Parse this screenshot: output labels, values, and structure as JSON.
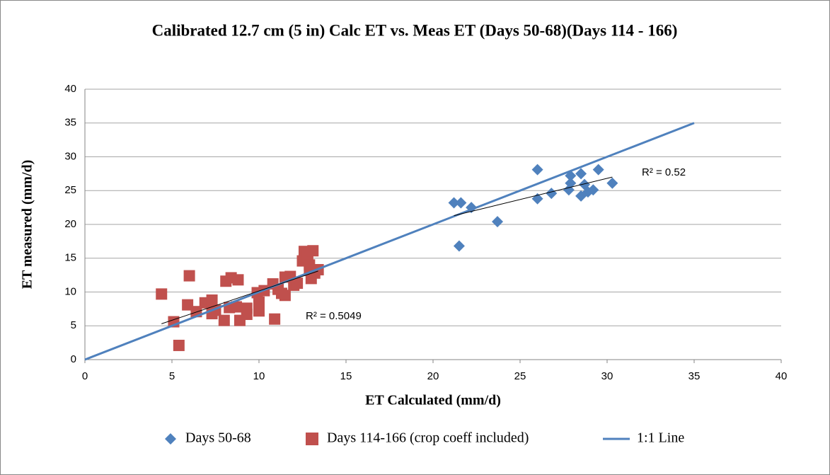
{
  "chart_data": {
    "type": "scatter",
    "title": "Calibrated 12.7 cm (5 in) Calc ET vs. Meas ET (Days 50-68)(Days 114 - 166)",
    "xlabel": "ET Calculated (mm/d)",
    "ylabel": "ET measured (mm/d)",
    "xlim": [
      0,
      40
    ],
    "xticks": [
      0,
      5,
      10,
      15,
      20,
      25,
      30,
      35,
      40
    ],
    "ylim": [
      0,
      40
    ],
    "yticks": [
      0,
      5,
      10,
      15,
      20,
      25,
      30,
      35,
      40
    ],
    "grid": true,
    "legend": "bottom",
    "series": [
      {
        "name": "Days 50-68",
        "color": "#4f81bd",
        "marker": "diamond",
        "x": [
          26,
          26,
          26.8,
          27.8,
          27.9,
          27.9,
          28.5,
          28.5,
          28.7,
          28.9,
          29.2,
          29.5,
          30.3,
          21.2,
          21.6,
          22.2,
          21.5,
          23.7
        ],
        "values": [
          28.1,
          23.8,
          24.6,
          25.1,
          26.1,
          27.2,
          27.5,
          24.2,
          25.9,
          24.8,
          25.1,
          28.1,
          26.1,
          23.2,
          23.2,
          22.5,
          16.8,
          20.4
        ]
      },
      {
        "name": "Days 114-166 (crop coeff included)",
        "color": "#c0504d",
        "marker": "square",
        "x": [
          4.4,
          5.1,
          5.4,
          6,
          5.9,
          6.4,
          6.9,
          7.3,
          7.3,
          7.5,
          8,
          8.1,
          8.3,
          8.4,
          8.7,
          8.8,
          8.9,
          9.3,
          9.3,
          9.9,
          10,
          10,
          10.3,
          10.8,
          10.9,
          11.1,
          11.3,
          11.5,
          11.5,
          11.8,
          12,
          12.2,
          12.5,
          12.6,
          12.8,
          12.9,
          13,
          13.1,
          13.2,
          13.4,
          12.9
        ],
        "values": [
          9.7,
          5.6,
          2.1,
          12.4,
          8.1,
          7.1,
          8.4,
          6.8,
          8.8,
          7.3,
          5.8,
          11.6,
          7.7,
          12.1,
          7.8,
          11.8,
          5.8,
          7.6,
          6.7,
          9.9,
          7.2,
          8.5,
          10.2,
          11.2,
          6,
          10.4,
          9.8,
          9.5,
          12.2,
          12.3,
          11,
          11.3,
          14.6,
          16,
          15.2,
          14,
          12,
          16.1,
          12.8,
          13.3,
          13.2
        ]
      },
      {
        "name": "1:1 Line",
        "color": "#4f81bd",
        "marker": "line",
        "x": [
          0,
          35
        ],
        "values": [
          0,
          35
        ]
      }
    ],
    "trendlines": [
      {
        "label": "R² = 0.52",
        "x": [
          21.2,
          30.3
        ],
        "values": [
          21.3,
          27
        ]
      },
      {
        "label": "R² = 0.5049",
        "x": [
          4.4,
          13.4
        ],
        "values": [
          5.3,
          13.1
        ]
      }
    ]
  }
}
